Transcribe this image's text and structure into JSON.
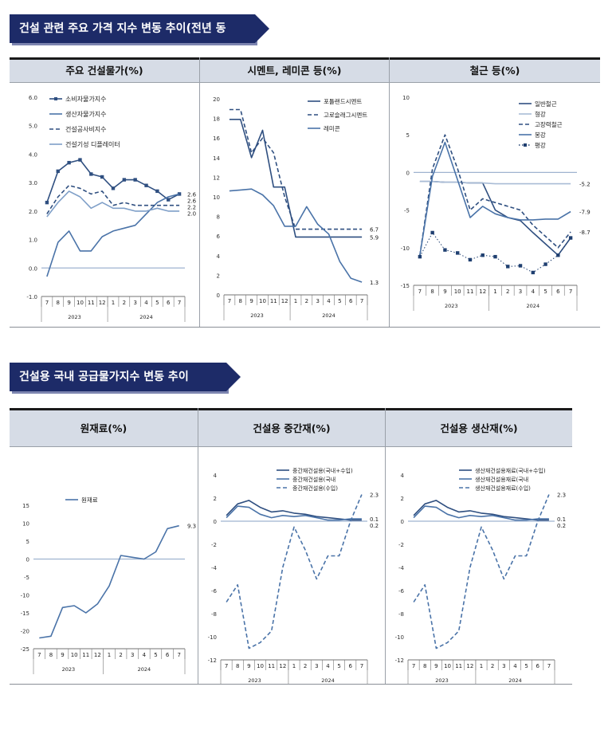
{
  "sections": [
    {
      "title": "건설 관련 주요 가격 지수 변동 추이(전년 동월 대비)"
    },
    {
      "title": "건설용 국내 공급물가지수 변동 추이(전년 동월 대비)"
    }
  ],
  "colors": {
    "dark": "#2f4f80",
    "mid": "#4a73a8",
    "light": "#7f9fc8",
    "pale": "#a9bcd6",
    "zero": "#9fb3d0"
  },
  "chart_data": [
    {
      "type": "line",
      "title": "주요 건설물가(%)",
      "x": [
        "7",
        "8",
        "9",
        "10",
        "11",
        "12",
        "1",
        "2",
        "3",
        "4",
        "5",
        "6",
        "7"
      ],
      "x_groups": [
        "2023",
        "2024"
      ],
      "ylim": [
        -1.0,
        6.0
      ],
      "yticks": [
        "6.0",
        "5.0",
        "4.0",
        "3.0",
        "2.0",
        "1.0",
        "0.0",
        "-1.0"
      ],
      "series": [
        {
          "name": "소비자물가지수",
          "values": [
            2.3,
            3.4,
            3.7,
            3.8,
            3.3,
            3.2,
            2.8,
            3.1,
            3.1,
            2.9,
            2.7,
            2.4,
            2.6
          ],
          "color": "#2f4f80",
          "style": "solid",
          "marker": "square"
        },
        {
          "name": "생산자물가지수",
          "values": [
            -0.3,
            0.9,
            1.3,
            0.6,
            0.6,
            1.1,
            1.3,
            1.4,
            1.5,
            1.9,
            2.3,
            2.5,
            2.6
          ],
          "color": "#4a73a8",
          "style": "solid",
          "marker": "none"
        },
        {
          "name": "건설공사비지수",
          "values": [
            1.9,
            2.5,
            2.9,
            2.8,
            2.6,
            2.7,
            2.2,
            2.3,
            2.2,
            2.2,
            2.2,
            2.2,
            2.2
          ],
          "color": "#2f4f80",
          "style": "dashed",
          "marker": "none"
        },
        {
          "name": "건설기성 디플레이터",
          "values": [
            1.8,
            2.3,
            2.7,
            2.5,
            2.1,
            2.3,
            2.1,
            2.1,
            2.0,
            2.0,
            2.1,
            2.0,
            2.0
          ],
          "color": "#7f9fc8",
          "style": "solid",
          "marker": "none"
        }
      ],
      "end_labels": [
        "2.6",
        "2.6",
        "2.2",
        "2.0"
      ]
    },
    {
      "type": "line",
      "title": "시멘트, 레미콘 등(%)",
      "x": [
        "7",
        "8",
        "9",
        "10",
        "11",
        "12",
        "1",
        "2",
        "3",
        "4",
        "5",
        "6",
        "7"
      ],
      "x_groups": [
        "2023",
        "2024"
      ],
      "ylim": [
        0,
        20
      ],
      "yticks": [
        "20",
        "18",
        "16",
        "14",
        "12",
        "10",
        "8",
        "6",
        "4",
        "2",
        "0"
      ],
      "series": [
        {
          "name": "포틀랜드시멘트",
          "values": [
            17.9,
            17.9,
            14.0,
            16.8,
            11.0,
            11.0,
            5.9,
            5.9,
            5.9,
            5.9,
            5.9,
            5.9,
            5.9
          ],
          "color": "#2f4f80",
          "style": "solid",
          "marker": "none"
        },
        {
          "name": "고로슬래그시멘트",
          "values": [
            18.9,
            18.9,
            14.5,
            16.0,
            14.5,
            10.0,
            6.7,
            6.7,
            6.7,
            6.7,
            6.7,
            6.7,
            6.7
          ],
          "color": "#2f4f80",
          "style": "dashed",
          "marker": "none"
        },
        {
          "name": "레미콘",
          "values": [
            10.6,
            10.7,
            10.8,
            10.2,
            9.1,
            7.0,
            7.0,
            9.0,
            7.2,
            6.2,
            3.4,
            1.7,
            1.3
          ],
          "color": "#4a73a8",
          "style": "solid",
          "marker": "none"
        }
      ],
      "end_labels": [
        "6.7",
        "5.9",
        "1.3"
      ]
    },
    {
      "type": "line",
      "title": "철근 등(%)",
      "x": [
        "7",
        "8",
        "9",
        "10",
        "11",
        "12",
        "1",
        "2",
        "3",
        "4",
        "5",
        "6",
        "7"
      ],
      "x_groups": [
        "2023",
        "2024"
      ],
      "ylim": [
        -15,
        10
      ],
      "yticks": [
        "10",
        "5",
        "0",
        "-5",
        "-10",
        "-15"
      ],
      "series": [
        {
          "name": "일반철근",
          "values": [
            -1.2,
            -1.2,
            -1.3,
            -1.3,
            -1.4,
            -1.4,
            -5.0,
            -6.0,
            -6.4,
            -8.0,
            -9.5,
            -11.0,
            -8.7
          ],
          "color": "#2f4f80",
          "style": "solid",
          "marker": "none"
        },
        {
          "name": "형강",
          "values": [
            -1.2,
            -1.2,
            -1.3,
            -1.3,
            -1.4,
            -1.4,
            -1.5,
            -1.5,
            -1.5,
            -1.5,
            -1.5,
            -1.5,
            -1.5
          ],
          "color": "#a9bcd6",
          "style": "solid",
          "marker": "none"
        },
        {
          "name": "고장력철근",
          "values": [
            -11.0,
            0.5,
            5.0,
            0.5,
            -5.0,
            -3.5,
            -4.0,
            -4.5,
            -5.0,
            -7.0,
            -8.5,
            -10.0,
            -7.9
          ],
          "color": "#2f4f80",
          "style": "dashed",
          "marker": "none"
        },
        {
          "name": "봉강",
          "values": [
            -11.0,
            -0.5,
            4.0,
            -1.0,
            -6.0,
            -4.5,
            -5.5,
            -6.0,
            -6.3,
            -6.3,
            -6.2,
            -6.2,
            -5.2
          ],
          "color": "#4a73a8",
          "style": "solid",
          "marker": "none"
        },
        {
          "name": "평강",
          "values": [
            -11.2,
            -8.0,
            -10.3,
            -10.7,
            -11.6,
            -11.0,
            -11.2,
            -12.5,
            -12.4,
            -13.3,
            -12.2,
            -11.0,
            -8.7
          ],
          "color": "#1f3f70",
          "style": "dotted",
          "marker": "square"
        }
      ],
      "end_labels": [
        "-5.2",
        "-7.9",
        "-8.7"
      ]
    },
    {
      "type": "line",
      "title": "원재료(%)",
      "x": [
        "7",
        "8",
        "9",
        "10",
        "11",
        "12",
        "1",
        "2",
        "3",
        "4",
        "5",
        "6",
        "7"
      ],
      "x_groups": [
        "2023",
        "2024"
      ],
      "ylim": [
        -25,
        15
      ],
      "yticks": [
        "15",
        "10",
        "5",
        "0",
        "-5",
        "-10",
        "-15",
        "-20",
        "-25"
      ],
      "series": [
        {
          "name": "원재료",
          "values": [
            -22.0,
            -21.5,
            -13.5,
            -13.0,
            -15.0,
            -12.5,
            -7.5,
            1.0,
            0.5,
            0.0,
            2.0,
            8.5,
            9.3
          ],
          "color": "#4a73a8",
          "style": "solid",
          "marker": "none"
        }
      ],
      "end_labels": [
        "9.3"
      ]
    },
    {
      "type": "line",
      "title": "건설용 중간재(%)",
      "x": [
        "7",
        "8",
        "9",
        "10",
        "11",
        "12",
        "1",
        "2",
        "3",
        "4",
        "5",
        "6",
        "7"
      ],
      "x_groups": [
        "2023",
        "2024"
      ],
      "ylim": [
        -12,
        4
      ],
      "yticks": [
        "4",
        "2",
        "0",
        "-2",
        "-4",
        "-6",
        "-8",
        "-10",
        "-12"
      ],
      "series": [
        {
          "name": "중간재건설용(국내+수입)",
          "values": [
            0.5,
            1.5,
            1.8,
            1.2,
            0.8,
            0.9,
            0.7,
            0.6,
            0.4,
            0.3,
            0.2,
            0.1,
            0.1
          ],
          "color": "#2f4f80",
          "style": "solid",
          "marker": "none"
        },
        {
          "name": "중간재건설용(국내",
          "values": [
            0.3,
            1.3,
            1.2,
            0.6,
            0.3,
            0.5,
            0.4,
            0.5,
            0.3,
            0.1,
            0.1,
            0.2,
            0.2
          ],
          "color": "#4a73a8",
          "style": "solid",
          "marker": "none"
        },
        {
          "name": "중간재건설용(수입)",
          "values": [
            -7.0,
            -5.5,
            -11.0,
            -10.5,
            -9.5,
            -4.0,
            -0.5,
            -2.5,
            -5.0,
            -3.0,
            -3.0,
            0.0,
            2.3
          ],
          "color": "#4a73a8",
          "style": "dashed",
          "marker": "none"
        }
      ],
      "end_labels": [
        "2.3",
        "0.1",
        "0.2"
      ]
    },
    {
      "type": "line",
      "title": "건설용 생산재(%)",
      "x": [
        "7",
        "8",
        "9",
        "10",
        "11",
        "12",
        "1",
        "2",
        "3",
        "4",
        "5",
        "6",
        "7"
      ],
      "x_groups": [
        "2023",
        "2024"
      ],
      "ylim": [
        -12,
        4
      ],
      "yticks": [
        "4",
        "2",
        "0",
        "-2",
        "-4",
        "-6",
        "-8",
        "-10",
        "-12"
      ],
      "series": [
        {
          "name": "생산재건설용재료(국내+수입)",
          "values": [
            0.5,
            1.5,
            1.8,
            1.2,
            0.8,
            0.9,
            0.7,
            0.6,
            0.4,
            0.3,
            0.2,
            0.1,
            0.1
          ],
          "color": "#2f4f80",
          "style": "solid",
          "marker": "none"
        },
        {
          "name": "생산재건설용재료(국내",
          "values": [
            0.3,
            1.3,
            1.2,
            0.6,
            0.3,
            0.5,
            0.4,
            0.5,
            0.3,
            0.1,
            0.1,
            0.2,
            0.2
          ],
          "color": "#4a73a8",
          "style": "solid",
          "marker": "none"
        },
        {
          "name": "생산재건설용재료(수입)",
          "values": [
            -7.0,
            -5.5,
            -11.0,
            -10.5,
            -9.5,
            -4.0,
            -0.5,
            -2.5,
            -5.0,
            -3.0,
            -3.0,
            0.0,
            2.3
          ],
          "color": "#4a73a8",
          "style": "dashed",
          "marker": "none"
        }
      ],
      "end_labels": [
        "2.3",
        "0.1",
        "0.2"
      ]
    }
  ]
}
